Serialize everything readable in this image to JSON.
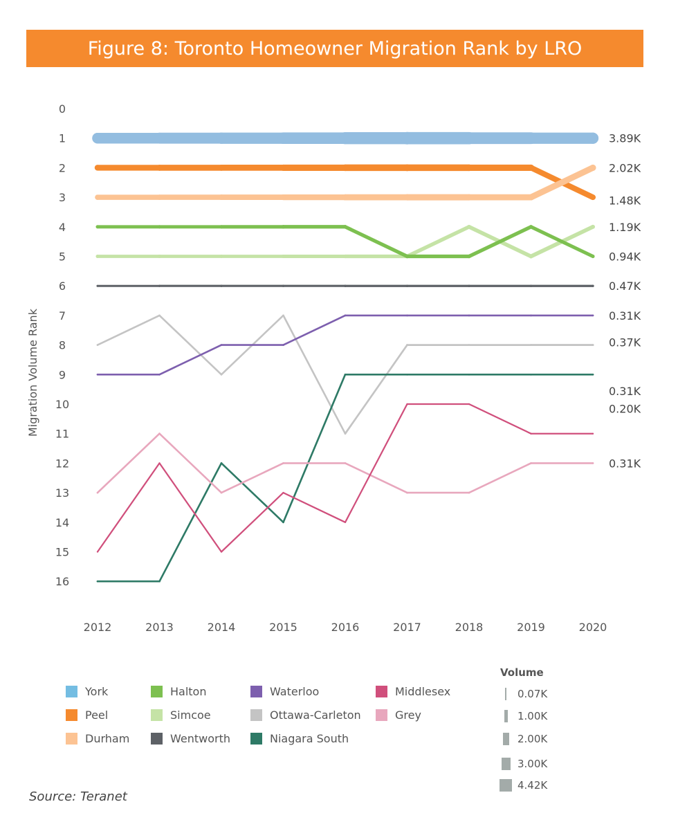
{
  "header": {
    "title": "Figure 8: Toronto Homeowner Migration Rank by LRO"
  },
  "source": "Source: Teranet",
  "chart_data": {
    "type": "line",
    "title": "Figure 8: Toronto Homeowner Migration Rank by LRO",
    "xlabel": "",
    "ylabel": "Migration Volume Rank",
    "x": [
      "2012",
      "2013",
      "2014",
      "2015",
      "2016",
      "2017",
      "2018",
      "2019",
      "2020"
    ],
    "ylim": [
      0,
      16
    ],
    "y_inverted": true,
    "y_ticks": [
      "0",
      "1",
      "2",
      "3",
      "4",
      "5",
      "6",
      "7",
      "8",
      "9",
      "10",
      "11",
      "12",
      "13",
      "14",
      "15",
      "16"
    ],
    "grid": false,
    "legend_position": "bottom",
    "series": [
      {
        "name": "York",
        "color": "#93bde0",
        "values": [
          1,
          1,
          1,
          1,
          1,
          1,
          1,
          1,
          1
        ],
        "end_label": "3.89K",
        "volume_k": [
          3.7,
          3.8,
          3.9,
          4.0,
          4.1,
          4.42,
          4.2,
          4.0,
          3.89
        ]
      },
      {
        "name": "Peel",
        "color": "#f58a2e",
        "values": [
          2,
          2,
          2,
          2,
          2,
          2,
          2,
          2,
          3
        ],
        "end_label": "1.48K",
        "volume_k": [
          1.8,
          1.9,
          1.9,
          2.0,
          2.1,
          2.2,
          2.1,
          2.0,
          1.48
        ]
      },
      {
        "name": "Durham",
        "color": "#fcc393",
        "values": [
          3,
          3,
          3,
          3,
          3,
          3,
          3,
          3,
          2
        ],
        "end_label": "2.02K",
        "volume_k": [
          1.6,
          1.6,
          1.7,
          1.7,
          1.9,
          2.0,
          2.0,
          1.9,
          2.02
        ]
      },
      {
        "name": "Halton",
        "color": "#7dc050",
        "values": [
          4,
          4,
          4,
          4,
          4,
          5,
          5,
          4,
          5
        ],
        "end_label": "0.94K",
        "volume_k": [
          0.9,
          0.9,
          0.9,
          1.0,
          1.0,
          1.0,
          1.0,
          1.0,
          0.94
        ]
      },
      {
        "name": "Simcoe",
        "color": "#c5e3a6",
        "values": [
          5,
          5,
          5,
          5,
          5,
          5,
          4,
          5,
          4
        ],
        "end_label": "1.19K",
        "volume_k": [
          0.9,
          0.9,
          0.9,
          0.9,
          1.0,
          1.0,
          1.1,
          1.1,
          1.19
        ]
      },
      {
        "name": "Wentworth",
        "color": "#5d6166",
        "values": [
          6,
          6,
          6,
          6,
          6,
          6,
          6,
          6,
          6
        ],
        "end_label": "0.47K",
        "volume_k": [
          0.4,
          0.4,
          0.45,
          0.45,
          0.47,
          0.47,
          0.47,
          0.47,
          0.47
        ]
      },
      {
        "name": "Waterloo",
        "color": "#7d5fae",
        "values": [
          9,
          9,
          8,
          8,
          7,
          7,
          7,
          7,
          7
        ],
        "end_label": "0.31K",
        "volume_k": [
          0.3,
          0.3,
          0.3,
          0.3,
          0.31,
          0.31,
          0.31,
          0.31,
          0.31
        ]
      },
      {
        "name": "Ottawa-Carleton",
        "color": "#c4c4c4",
        "values": [
          8,
          7,
          9,
          7,
          11,
          8,
          8,
          8,
          8
        ],
        "end_label": "0.37K",
        "volume_k": [
          0.3,
          0.3,
          0.3,
          0.3,
          0.3,
          0.35,
          0.35,
          0.35,
          0.37
        ]
      },
      {
        "name": "Niagara South",
        "color": "#2e7a66",
        "values": [
          16,
          16,
          12,
          14,
          9,
          9,
          9,
          9,
          9
        ],
        "end_label": "0.31K",
        "volume_k": [
          0.3,
          0.3,
          0.3,
          0.3,
          0.31,
          0.31,
          0.31,
          0.31,
          0.31
        ]
      },
      {
        "name": "Middlesex",
        "color": "#d04f7c",
        "values": [
          15,
          12,
          15,
          13,
          14,
          10,
          10,
          11,
          11
        ],
        "end_label": "0.20K",
        "volume_k": [
          0.2,
          0.2,
          0.2,
          0.2,
          0.2,
          0.2,
          0.2,
          0.2,
          0.2
        ]
      },
      {
        "name": "Grey",
        "color": "#e8a7bd",
        "values": [
          13,
          11,
          13,
          12,
          12,
          13,
          13,
          12,
          12
        ],
        "end_label": "0.31K",
        "volume_k": [
          0.3,
          0.3,
          0.3,
          0.3,
          0.3,
          0.3,
          0.3,
          0.31,
          0.31
        ]
      }
    ],
    "end_labels_display": [
      {
        "label": "3.89K",
        "rank": 1
      },
      {
        "label": "2.02K",
        "rank": 2
      },
      {
        "label": "1.48K",
        "rank": 3.1
      },
      {
        "label": "1.19K",
        "rank": 4
      },
      {
        "label": "0.94K",
        "rank": 5
      },
      {
        "label": "0.47K",
        "rank": 6
      },
      {
        "label": "0.31K",
        "rank": 7
      },
      {
        "label": "0.37K",
        "rank": 7.9
      },
      {
        "label": "0.31K",
        "rank": 9.55
      },
      {
        "label": "0.20K",
        "rank": 10.15
      },
      {
        "label": "0.31K",
        "rank": 12
      }
    ],
    "size_legend": {
      "title": "Volume",
      "items": [
        {
          "label": "0.07K",
          "value_k": 0.07
        },
        {
          "label": "1.00K",
          "value_k": 1.0
        },
        {
          "label": "2.00K",
          "value_k": 2.0
        },
        {
          "label": "3.00K",
          "value_k": 3.0
        },
        {
          "label": "4.42K",
          "value_k": 4.42
        }
      ]
    }
  },
  "legend": {
    "items": [
      {
        "name": "York",
        "color": "#74bde2"
      },
      {
        "name": "Peel",
        "color": "#f58a2e"
      },
      {
        "name": "Durham",
        "color": "#fcc393"
      },
      {
        "name": "Halton",
        "color": "#7dc050"
      },
      {
        "name": "Simcoe",
        "color": "#c5e3a6"
      },
      {
        "name": "Wentworth",
        "color": "#5d6166"
      },
      {
        "name": "Waterloo",
        "color": "#7d5fae"
      },
      {
        "name": "Ottawa-Carleton",
        "color": "#c4c4c4"
      },
      {
        "name": "Niagara South",
        "color": "#2e7a66"
      },
      {
        "name": "Middlesex",
        "color": "#d04f7c"
      },
      {
        "name": "Grey",
        "color": "#e8a7bd"
      }
    ]
  }
}
